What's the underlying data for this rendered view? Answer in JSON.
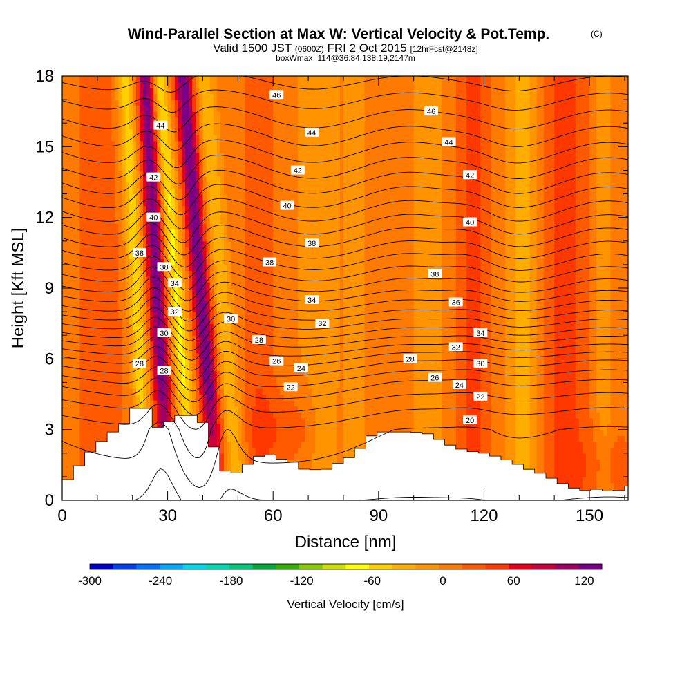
{
  "chart_data": {
    "type": "heatmap",
    "title": "Wind-Parallel Section at Max W: Vertical Velocity & Pot.Temp.",
    "title_mark": "(C)",
    "subtitle_parts": [
      "Valid 1500 JST",
      "(0600Z)",
      "FRI 2 Oct 2015",
      "[12hrFcst@2148z]"
    ],
    "subtitle2": "boxWmax=114@36.84,138.19,2147m",
    "xlabel": "Distance [nm]",
    "ylabel": "Height [Kft MSL]",
    "xlim": [
      0,
      161
    ],
    "ylim": [
      0,
      18
    ],
    "x_ticks": [
      "0",
      "30",
      "60",
      "90",
      "120",
      "150"
    ],
    "y_ticks": [
      "0",
      "3",
      "6",
      "9",
      "12",
      "15",
      "18"
    ],
    "grid": false,
    "colorbar": {
      "title": "Vertical Velocity [cm/s]",
      "min": -300,
      "max": 135,
      "tick_labels": [
        "-300",
        "-240",
        "-180",
        "-120",
        "-60",
        "0",
        "60",
        "120"
      ],
      "colors": [
        "#0000cc",
        "#0040ee",
        "#0070ff",
        "#00a8ff",
        "#00d8e8",
        "#00d8b0",
        "#00c878",
        "#00a838",
        "#33b000",
        "#88cc00",
        "#cce000",
        "#ffff00",
        "#ffd000",
        "#ffae00",
        "#ff9400",
        "#ff7a00",
        "#ff5a00",
        "#ff3800",
        "#e8001a",
        "#c8003c",
        "#9e0064",
        "#7a0086"
      ]
    },
    "velocity_columns": [
      {
        "x": 1,
        "w": 1.2,
        "v": -12
      },
      {
        "x": 5,
        "w": 2.5,
        "v": 3
      },
      {
        "x": 9,
        "w": 2,
        "v": 20
      },
      {
        "x": 14,
        "w": 4,
        "v": 12
      },
      {
        "x": 22,
        "w": 1.8,
        "v": -65
      },
      {
        "x": 28,
        "w": 1.8,
        "v": 120
      },
      {
        "x": 34,
        "w": 1.8,
        "v": -75
      },
      {
        "x": 41,
        "w": 1.8,
        "v": 125
      },
      {
        "x": 47,
        "w": 2,
        "v": -45
      },
      {
        "x": 56,
        "w": 3,
        "v": 25
      },
      {
        "x": 66,
        "w": 4,
        "v": -10
      },
      {
        "x": 74,
        "w": 3,
        "v": -25
      },
      {
        "x": 84,
        "w": 3,
        "v": -20
      },
      {
        "x": 90,
        "w": 3,
        "v": 10
      },
      {
        "x": 104,
        "w": 4,
        "v": -18
      },
      {
        "x": 117,
        "w": 3,
        "v": 38
      },
      {
        "x": 131,
        "w": 3,
        "v": -40
      },
      {
        "x": 143,
        "w": 5,
        "v": 35
      },
      {
        "x": 154,
        "w": 2,
        "v": -25
      }
    ],
    "terrain": [
      [
        0,
        0.6
      ],
      [
        4,
        1.3
      ],
      [
        7,
        1.9
      ],
      [
        9,
        2.2
      ],
      [
        12,
        2.6
      ],
      [
        16,
        3.1
      ],
      [
        19,
        3.4
      ],
      [
        20,
        3.9
      ],
      [
        25,
        3.9
      ],
      [
        26,
        3.1
      ],
      [
        29,
        3.1
      ],
      [
        30,
        3.3
      ],
      [
        32,
        3.5
      ],
      [
        33,
        3.6
      ],
      [
        39,
        3.6
      ],
      [
        40,
        3.3
      ],
      [
        42,
        2.8
      ],
      [
        44,
        1.9
      ],
      [
        46,
        1.3
      ],
      [
        48,
        1.0
      ],
      [
        51,
        1.3
      ],
      [
        55,
        1.8
      ],
      [
        58,
        2.0
      ],
      [
        61,
        1.8
      ],
      [
        66,
        1.6
      ],
      [
        69,
        1.3
      ],
      [
        75,
        1.3
      ],
      [
        80,
        1.7
      ],
      [
        83,
        1.9
      ],
      [
        86,
        2.4
      ],
      [
        89,
        2.9
      ],
      [
        100,
        2.9
      ],
      [
        105,
        2.8
      ],
      [
        108,
        2.5
      ],
      [
        111,
        2.3
      ],
      [
        115,
        2.1
      ],
      [
        120,
        2.0
      ],
      [
        125,
        1.8
      ],
      [
        130,
        1.5
      ],
      [
        133,
        1.3
      ],
      [
        137,
        1.1
      ],
      [
        141,
        0.8
      ],
      [
        144,
        0.6
      ],
      [
        148,
        0.4
      ],
      [
        151,
        0.5
      ],
      [
        154,
        0.4
      ],
      [
        158,
        0.4
      ],
      [
        161,
        0.6
      ]
    ],
    "theta_levels": [
      20,
      22,
      24,
      26,
      28,
      30,
      32,
      34,
      36,
      38,
      40,
      42,
      44,
      46
    ],
    "theta_profile_far": {
      "heights": [
        0,
        3,
        4,
        5,
        6,
        7,
        8,
        9,
        10,
        11,
        12,
        13,
        14,
        15,
        16,
        17,
        18
      ],
      "values": [
        19,
        20,
        21.3,
        23,
        25.5,
        28.6,
        31.4,
        33.9,
        35.9,
        37.8,
        39.6,
        41.3,
        42.9,
        44.4,
        45.8,
        47.1,
        48.4
      ]
    },
    "theta_profile_lee": {
      "heights": [
        0,
        3,
        4,
        5,
        6,
        7,
        8,
        9,
        10,
        11,
        12,
        13,
        14,
        15,
        16,
        17,
        18
      ],
      "values": [
        19,
        21,
        22.5,
        24.5,
        26.7,
        29,
        31.3,
        33.5,
        35.6,
        37.6,
        39.4,
        41.1,
        42.7,
        44.2,
        45.6,
        46.9,
        48.2
      ]
    },
    "contour_labels": [
      {
        "text": "46",
        "x": 61,
        "y": 17.2
      },
      {
        "text": "46",
        "x": 105,
        "y": 16.5
      },
      {
        "text": "44",
        "x": 28,
        "y": 15.9
      },
      {
        "text": "44",
        "x": 71,
        "y": 15.6
      },
      {
        "text": "44",
        "x": 110,
        "y": 15.2
      },
      {
        "text": "42",
        "x": 26,
        "y": 13.7
      },
      {
        "text": "42",
        "x": 67,
        "y": 14.0
      },
      {
        "text": "42",
        "x": 116,
        "y": 13.8
      },
      {
        "text": "40",
        "x": 26,
        "y": 12.0
      },
      {
        "text": "40",
        "x": 64,
        "y": 12.5
      },
      {
        "text": "40",
        "x": 116,
        "y": 11.8
      },
      {
        "text": "38",
        "x": 22,
        "y": 10.5
      },
      {
        "text": "38",
        "x": 29,
        "y": 9.9
      },
      {
        "text": "38",
        "x": 71,
        "y": 10.9
      },
      {
        "text": "38",
        "x": 59,
        "y": 10.1
      },
      {
        "text": "38",
        "x": 106,
        "y": 9.6
      },
      {
        "text": "34",
        "x": 32,
        "y": 9.2
      },
      {
        "text": "34",
        "x": 71,
        "y": 8.5
      },
      {
        "text": "36",
        "x": 112,
        "y": 8.4
      },
      {
        "text": "32",
        "x": 32,
        "y": 8.0
      },
      {
        "text": "30",
        "x": 48,
        "y": 7.7
      },
      {
        "text": "32",
        "x": 74,
        "y": 7.5
      },
      {
        "text": "34",
        "x": 119,
        "y": 7.1
      },
      {
        "text": "30",
        "x": 29,
        "y": 7.1
      },
      {
        "text": "28",
        "x": 56,
        "y": 6.8
      },
      {
        "text": "32",
        "x": 112,
        "y": 6.5
      },
      {
        "text": "28",
        "x": 22,
        "y": 5.8
      },
      {
        "text": "28",
        "x": 29,
        "y": 5.5
      },
      {
        "text": "26",
        "x": 61,
        "y": 5.9
      },
      {
        "text": "24",
        "x": 68,
        "y": 5.6
      },
      {
        "text": "28",
        "x": 99,
        "y": 6.0
      },
      {
        "text": "30",
        "x": 119,
        "y": 5.8
      },
      {
        "text": "26",
        "x": 106,
        "y": 5.2
      },
      {
        "text": "24",
        "x": 113,
        "y": 4.9
      },
      {
        "text": "22",
        "x": 65,
        "y": 4.8
      },
      {
        "text": "22",
        "x": 119,
        "y": 4.4
      },
      {
        "text": "20",
        "x": 116,
        "y": 3.4
      }
    ]
  }
}
